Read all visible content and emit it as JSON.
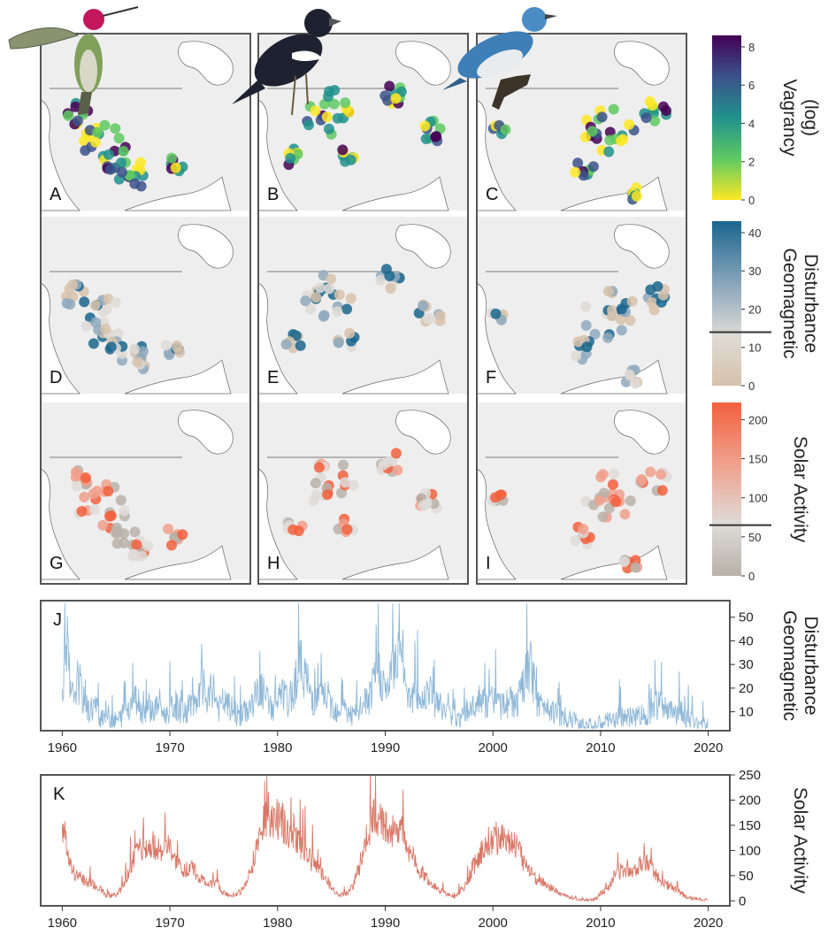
{
  "maps": {
    "panels": [
      {
        "id": "A",
        "label": "A",
        "metric": "vagrancy"
      },
      {
        "id": "B",
        "label": "B",
        "metric": "vagrancy"
      },
      {
        "id": "C",
        "label": "C",
        "metric": "vagrancy"
      },
      {
        "id": "D",
        "label": "D",
        "metric": "geomagnetic"
      },
      {
        "id": "E",
        "label": "E",
        "metric": "geomagnetic"
      },
      {
        "id": "F",
        "label": "F",
        "metric": "geomagnetic"
      },
      {
        "id": "G",
        "label": "G",
        "metric": "solar"
      },
      {
        "id": "H",
        "label": "H",
        "metric": "solar"
      },
      {
        "id": "I",
        "label": "I",
        "metric": "solar"
      }
    ],
    "columns": [
      {
        "species_icon": "hummingbird-illustration"
      },
      {
        "species_icon": "black-bird-illustration"
      },
      {
        "species_icon": "warbler-illustration"
      }
    ],
    "land_color": "#eeeeee",
    "water_color": "#ffffff"
  },
  "colorbars": {
    "vagrancy": {
      "title_lines": [
        "Vagrancy",
        "(log)"
      ],
      "ticks": [
        "0",
        "2",
        "4",
        "6",
        "8"
      ],
      "tick_values": [
        0,
        2,
        4,
        6,
        8
      ],
      "range": [
        0,
        8.6
      ],
      "colors": [
        "#fde725",
        "#5ec962",
        "#21918c",
        "#3b528b",
        "#440154"
      ]
    },
    "geomagnetic": {
      "title_lines": [
        "Geomagnetic",
        "Disturbance"
      ],
      "ticks": [
        "0",
        "10",
        "20",
        "30",
        "40"
      ],
      "tick_values": [
        0,
        10,
        20,
        30,
        40
      ],
      "range": [
        0,
        43
      ],
      "threshold": 14,
      "colors": [
        "#d7c2ab",
        "#dedbd5",
        "#8fa9bd",
        "#1a668d"
      ]
    },
    "solar": {
      "title_lines": [
        "Solar Activity"
      ],
      "ticks": [
        "0",
        "50",
        "100",
        "150",
        "200"
      ],
      "tick_values": [
        0,
        50,
        100,
        150,
        200
      ],
      "range": [
        0,
        222
      ],
      "threshold": 65,
      "colors": [
        "#b8b1a8",
        "#dedbd8",
        "#f0a08c",
        "#f2603d"
      ]
    }
  },
  "chart_data": [
    {
      "panel": "J",
      "type": "line",
      "label": "J",
      "ylabel_lines": [
        "Geomagnetic",
        "Disturbance"
      ],
      "xlim": [
        1958,
        2022
      ],
      "ylim": [
        2,
        57
      ],
      "x_ticks": [
        1960,
        1970,
        1980,
        1990,
        2000,
        2010,
        2020
      ],
      "y_ticks": [
        10,
        20,
        30,
        40,
        50
      ],
      "color": "#8fb8d8",
      "series": [
        {
          "x": [
            1960.0,
            1960.4,
            1960.8,
            1961.5,
            1962.0,
            1962.5,
            1963.0,
            1963.5,
            1964.0,
            1964.5,
            1965.0,
            1965.5,
            1966.0,
            1966.5,
            1967.0,
            1967.5,
            1968.0,
            1968.5,
            1969.0,
            1969.5,
            1970.0,
            1970.5,
            1971.0,
            1971.5,
            1972.0,
            1972.5,
            1973.0,
            1973.5,
            1974.0,
            1974.5,
            1975.0,
            1975.5,
            1976.0,
            1976.5,
            1977.0,
            1977.5,
            1978.0,
            1978.5,
            1979.0,
            1979.5,
            1980.0,
            1980.5,
            1981.0,
            1981.5,
            1982.0,
            1982.5,
            1983.0,
            1983.5,
            1984.0,
            1984.5,
            1985.0,
            1985.5,
            1986.0,
            1986.5,
            1987.0,
            1987.5,
            1988.0,
            1988.5,
            1989.0,
            1989.5,
            1990.0,
            1990.5,
            1991.0,
            1991.5,
            1992.0,
            1992.5,
            1993.0,
            1993.5,
            1994.0,
            1994.5,
            1995.0,
            1995.5,
            1996.0,
            1996.5,
            1997.0,
            1997.5,
            1998.0,
            1998.5,
            1999.0,
            1999.5,
            2000.0,
            2000.5,
            2001.0,
            2001.5,
            2002.0,
            2002.5,
            2003.0,
            2003.5,
            2004.0,
            2004.5,
            2005.0,
            2005.5,
            2006.0,
            2006.5,
            2007.0,
            2007.5,
            2008.0,
            2008.5,
            2009.0,
            2009.5,
            2010.0,
            2010.5,
            2011.0,
            2011.5,
            2012.0,
            2012.5,
            2013.0,
            2013.5,
            2014.0,
            2014.5,
            2015.0,
            2015.5,
            2016.0,
            2016.5,
            2017.0,
            2017.5,
            2018.0,
            2018.5,
            2019.0,
            2019.5,
            2020.0
          ],
          "y": [
            20,
            43,
            14,
            24,
            14,
            10,
            13,
            8,
            10,
            7,
            6,
            8,
            12,
            14,
            16,
            9,
            13,
            10,
            14,
            8,
            11,
            13,
            10,
            9,
            15,
            11,
            22,
            13,
            21,
            11,
            14,
            12,
            10,
            8,
            10,
            12,
            17,
            19,
            15,
            11,
            14,
            18,
            13,
            20,
            30,
            27,
            18,
            14,
            16,
            17,
            13,
            11,
            12,
            10,
            8,
            9,
            14,
            15,
            22,
            27,
            18,
            24,
            33,
            37,
            20,
            16,
            17,
            14,
            23,
            15,
            13,
            10,
            9,
            8,
            7,
            10,
            12,
            14,
            15,
            11,
            17,
            14,
            12,
            15,
            13,
            16,
            24,
            29,
            16,
            12,
            14,
            11,
            9,
            8,
            7,
            6,
            6,
            5,
            4,
            4,
            5,
            6,
            6,
            7,
            9,
            7,
            8,
            9,
            8,
            10,
            12,
            13,
            11,
            10,
            9,
            11,
            7,
            6,
            5,
            5,
            4
          ]
        }
      ]
    },
    {
      "panel": "K",
      "type": "line",
      "label": "K",
      "ylabel_lines": [
        "Solar Activity"
      ],
      "xlim": [
        1958,
        2022
      ],
      "ylim": [
        -10,
        250
      ],
      "x_ticks": [
        1960,
        1970,
        1980,
        1990,
        2000,
        2010,
        2020
      ],
      "y_ticks": [
        0,
        50,
        100,
        150,
        200,
        250
      ],
      "color": "#d97766",
      "series": [
        {
          "x": [
            1960.0,
            1960.5,
            1961.0,
            1961.5,
            1962.0,
            1962.5,
            1963.0,
            1963.5,
            1964.0,
            1964.5,
            1965.0,
            1965.5,
            1966.0,
            1966.5,
            1967.0,
            1967.5,
            1968.0,
            1968.5,
            1969.0,
            1969.5,
            1970.0,
            1970.5,
            1971.0,
            1971.5,
            1972.0,
            1972.5,
            1973.0,
            1973.5,
            1974.0,
            1974.5,
            1975.0,
            1975.5,
            1976.0,
            1976.5,
            1977.0,
            1977.5,
            1978.0,
            1978.5,
            1979.0,
            1979.5,
            1980.0,
            1980.5,
            1981.0,
            1981.5,
            1982.0,
            1982.5,
            1983.0,
            1983.5,
            1984.0,
            1984.5,
            1985.0,
            1985.5,
            1986.0,
            1986.5,
            1987.0,
            1987.5,
            1988.0,
            1988.5,
            1989.0,
            1989.5,
            1990.0,
            1990.5,
            1991.0,
            1991.5,
            1992.0,
            1992.5,
            1993.0,
            1993.5,
            1994.0,
            1994.5,
            1995.0,
            1995.5,
            1996.0,
            1996.5,
            1997.0,
            1997.5,
            1998.0,
            1998.5,
            1999.0,
            1999.5,
            2000.0,
            2000.5,
            2001.0,
            2001.5,
            2002.0,
            2002.5,
            2003.0,
            2003.5,
            2004.0,
            2004.5,
            2005.0,
            2005.5,
            2006.0,
            2006.5,
            2007.0,
            2007.5,
            2008.0,
            2008.5,
            2009.0,
            2009.5,
            2010.0,
            2010.5,
            2011.0,
            2011.5,
            2012.0,
            2012.5,
            2013.0,
            2013.5,
            2014.0,
            2014.5,
            2015.0,
            2015.5,
            2016.0,
            2016.5,
            2017.0,
            2017.5,
            2018.0,
            2018.5,
            2019.0,
            2019.5,
            2020.0
          ],
          "y": [
            150,
            100,
            60,
            50,
            40,
            35,
            30,
            25,
            12,
            10,
            12,
            25,
            45,
            80,
            100,
            110,
            105,
            110,
            105,
            100,
            105,
            75,
            65,
            60,
            70,
            55,
            40,
            35,
            35,
            30,
            15,
            12,
            12,
            18,
            30,
            60,
            100,
            150,
            175,
            165,
            160,
            155,
            140,
            140,
            110,
            100,
            85,
            70,
            55,
            45,
            25,
            15,
            12,
            15,
            30,
            60,
            100,
            140,
            165,
            170,
            145,
            140,
            150,
            140,
            110,
            90,
            65,
            55,
            40,
            30,
            22,
            15,
            10,
            8,
            20,
            30,
            60,
            80,
            100,
            120,
            125,
            125,
            130,
            120,
            115,
            95,
            70,
            60,
            45,
            40,
            30,
            25,
            15,
            12,
            8,
            6,
            3,
            2,
            2,
            3,
            15,
            20,
            40,
            55,
            60,
            65,
            60,
            70,
            80,
            70,
            55,
            45,
            35,
            28,
            20,
            15,
            8,
            5,
            4,
            2,
            2
          ]
        }
      ]
    }
  ]
}
